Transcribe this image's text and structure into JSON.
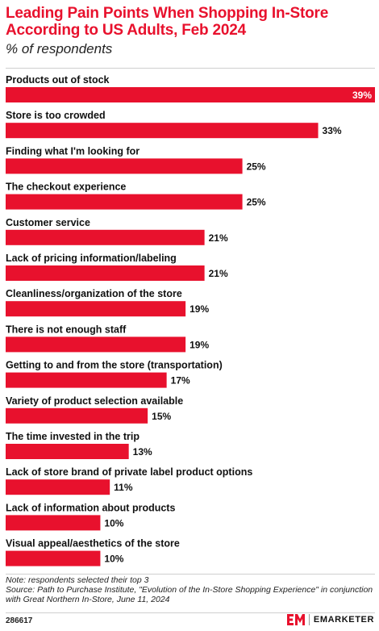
{
  "header": {
    "title": "Leading Pain Points When Shopping In-Store According to US Adults, Feb 2024",
    "subtitle": "% of respondents"
  },
  "chart_data": {
    "type": "bar",
    "orientation": "horizontal",
    "title": "Leading Pain Points When Shopping In-Store According to US Adults, Feb 2024",
    "subtitle": "% of respondents",
    "categories": [
      "Products out of stock",
      "Store is too crowded",
      "Finding what I'm looking for",
      "The checkout experience",
      "Customer service",
      "Lack of pricing information/labeling",
      "Cleanliness/organization of the store",
      "There is not enough staff",
      "Getting to and from the store (transportation)",
      "Variety of product selection available",
      "The time invested in the trip",
      "Lack of store brand of private label product options",
      "Lack of information about products",
      "Visual appeal/aesthetics of the store"
    ],
    "values": [
      39,
      33,
      25,
      25,
      21,
      21,
      19,
      19,
      17,
      15,
      13,
      11,
      10,
      10
    ],
    "value_labels": [
      "39%",
      "33%",
      "25%",
      "25%",
      "21%",
      "21%",
      "19%",
      "19%",
      "17%",
      "15%",
      "13%",
      "11%",
      "10%",
      "10%"
    ],
    "xlim": [
      0,
      39
    ],
    "bar_color": "#e8112d",
    "grid": false,
    "legend": "none"
  },
  "footer": {
    "note": "Note: respondents selected their top 3",
    "source": "Source: Path to Purchase Institute, \"Evolution of the In-Store Shopping Experience\" in conjunction with Great Northern In-Store, June 11, 2024",
    "chart_id": "286617",
    "brand_name": "EMARKETER"
  },
  "colors": {
    "accent": "#e8112d",
    "text": "#111111"
  }
}
